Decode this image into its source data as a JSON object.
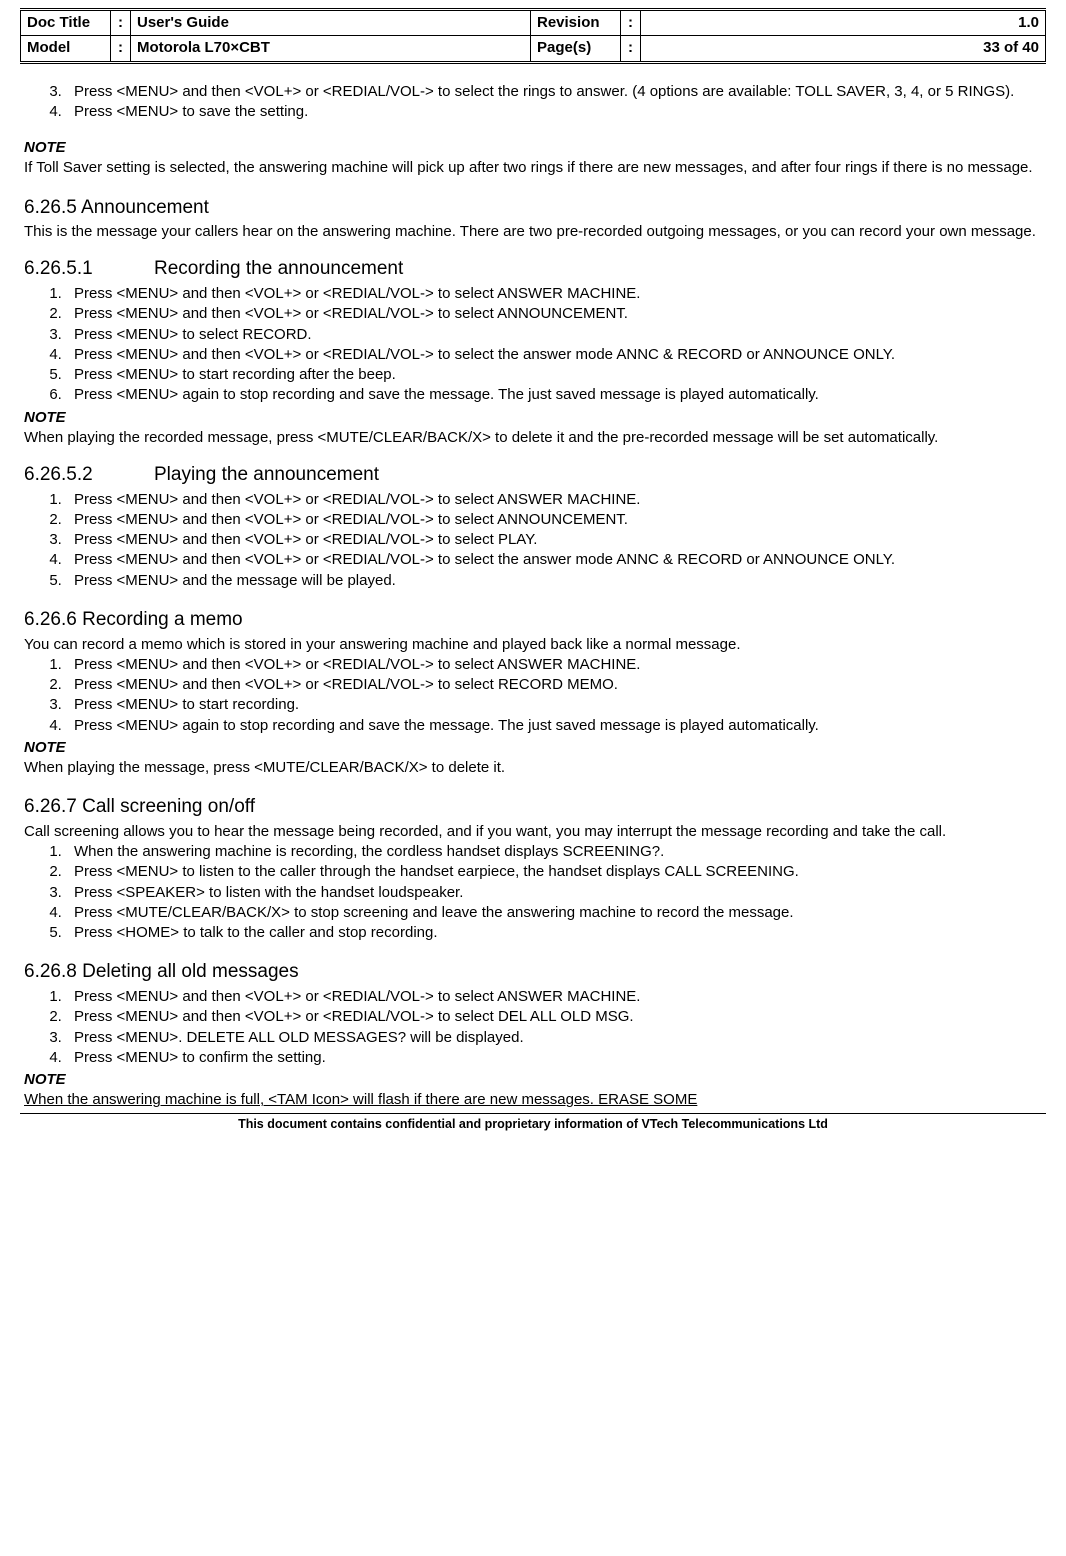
{
  "header": {
    "docTitleLabel": "Doc Title",
    "docTitleValue": "User's Guide",
    "revisionLabel": "Revision",
    "revisionValue": "1.0",
    "modelLabel": "Model",
    "modelValue": "Motorola L70×CBT",
    "pagesLabel": "Page(s)",
    "pagesValue": "33 of 40",
    "colon": ":"
  },
  "intro": {
    "step3": "Press <MENU> and then <VOL+> or <REDIAL/VOL-> to select the rings to answer. (4 options are available: TOLL SAVER, 3, 4, or 5 RINGS).",
    "step4": "Press <MENU> to save the setting."
  },
  "noteLabel": "NOTE",
  "note1": "If Toll Saver setting is selected, the answering machine will pick up after two rings if there are new messages, and after four rings if there is no message.",
  "s6265": {
    "heading": "6.26.5 Announcement",
    "para": "This is the message your callers hear on the answering machine. There are two pre-recorded outgoing messages, or you can record your own message."
  },
  "s62651": {
    "num": "6.26.5.1",
    "title": "Recording the announcement",
    "steps": {
      "1": "Press <MENU> and then <VOL+> or <REDIAL/VOL-> to select ANSWER MACHINE.",
      "2": "Press <MENU> and then <VOL+> or <REDIAL/VOL-> to select ANNOUNCEMENT.",
      "3": "Press <MENU> to select RECORD.",
      "4": "Press <MENU> and then <VOL+> or <REDIAL/VOL-> to select the answer mode ANNC & RECORD or ANNOUNCE ONLY.",
      "5": "Press <MENU> to start recording after the beep.",
      "6": "Press <MENU> again to stop recording and save the message. The just saved message is played automatically."
    },
    "note": "When playing the recorded message, press <MUTE/CLEAR/BACK/X> to delete it and the pre-recorded message will be set automatically."
  },
  "s62652": {
    "num": "6.26.5.2",
    "title": "Playing the announcement",
    "steps": {
      "1": "Press <MENU> and then <VOL+> or <REDIAL/VOL-> to select ANSWER MACHINE.",
      "2": "Press <MENU> and then <VOL+> or <REDIAL/VOL-> to select ANNOUNCEMENT.",
      "3": "Press <MENU> and then <VOL+> or <REDIAL/VOL-> to select PLAY.",
      "4": "Press <MENU> and then <VOL+> or <REDIAL/VOL-> to select the answer mode ANNC & RECORD or ANNOUNCE ONLY.",
      "5": "Press <MENU> and the message will be played."
    }
  },
  "s6266": {
    "heading": "6.26.6 Recording a memo",
    "para": "You can record a memo which is stored in your answering machine and played back like a normal message.",
    "steps": {
      "1": "Press <MENU> and then <VOL+> or <REDIAL/VOL-> to select ANSWER MACHINE.",
      "2": "Press <MENU> and then <VOL+> or <REDIAL/VOL-> to select RECORD MEMO.",
      "3": "Press <MENU> to start recording.",
      "4": "Press <MENU> again to stop recording and save the message. The just saved message is played automatically."
    },
    "note": "When playing the message, press <MUTE/CLEAR/BACK/X> to delete it."
  },
  "s6267": {
    "heading": "6.26.7 Call screening on/off",
    "para": "Call screening allows you to hear the message being recorded, and if you want, you may interrupt the message recording and take the call.",
    "steps": {
      "1": "When the answering machine is recording, the cordless handset displays SCREENING?.",
      "2": "Press <MENU> to listen to the caller through the handset earpiece, the handset displays CALL SCREENING.",
      "3": "Press <SPEAKER> to listen with the handset loudspeaker.",
      "4": "Press <MUTE/CLEAR/BACK/X> to stop screening and leave the answering machine to record the message.",
      "5": "Press <HOME> to talk to the caller and stop recording."
    }
  },
  "s6268": {
    "heading": "6.26.8 Deleting all old messages",
    "steps": {
      "1": "Press <MENU> and then <VOL+> or <REDIAL/VOL-> to select ANSWER MACHINE.",
      "2": "Press <MENU> and then <VOL+> or <REDIAL/VOL-> to select DEL ALL OLD MSG.",
      "3": "Press <MENU>. DELETE ALL OLD MESSAGES? will be displayed.",
      "4": "Press <MENU> to confirm the setting."
    },
    "note": "When the answering machine is full, <TAM Icon> will flash if there are new messages. ERASE SOME"
  },
  "footer": "This document contains confidential and proprietary information of VTech Telecommunications Ltd"
}
